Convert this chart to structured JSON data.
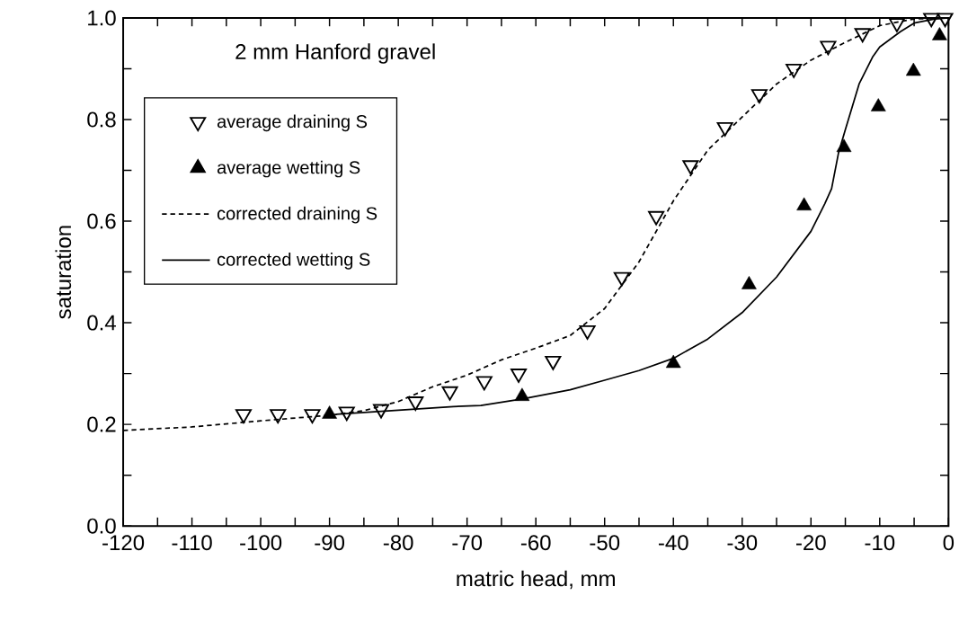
{
  "chart_data": {
    "type": "line",
    "xlabel": "matric head,  mm",
    "ylabel": "saturation",
    "annotations": [
      "2 mm Hanford gravel"
    ],
    "xlim": [
      -120,
      0
    ],
    "ylim": [
      0,
      1
    ],
    "xticks": [
      -120,
      {
        "value": -115,
        "label": null
      },
      -110,
      {
        "value": -105,
        "label": null
      },
      -100,
      {
        "value": -95,
        "label": null
      },
      -90,
      {
        "value": -85,
        "label": null
      },
      -80,
      {
        "value": -75,
        "label": null
      },
      -70,
      {
        "value": -65,
        "label": null
      },
      -60,
      {
        "value": -55,
        "label": null
      },
      -50,
      {
        "value": -45,
        "label": null
      },
      -40,
      {
        "value": -35,
        "label": null
      },
      -30,
      {
        "value": -25,
        "label": null
      },
      -20,
      {
        "value": -15,
        "label": null
      },
      -10,
      {
        "value": -5,
        "label": null
      },
      0
    ],
    "yticks": [
      {
        "value": 0,
        "label": "0.0"
      },
      {
        "value": 0.1,
        "label": null
      },
      0.2,
      {
        "value": 0.3,
        "label": null
      },
      0.4,
      {
        "value": 0.5,
        "label": null
      },
      0.6,
      {
        "value": 0.7,
        "label": null
      },
      0.8,
      {
        "value": 0.9,
        "label": null
      },
      {
        "value": 1,
        "label": "1.0"
      }
    ],
    "legend": "top left",
    "series": [
      {
        "name": "average draining S",
        "type": "scatter",
        "marker": "triangle",
        "color": "#000000",
        "x": [
          -102.5,
          -97.5,
          -92.5,
          -87.5,
          -82.5,
          -77.5,
          -72.5,
          -67.5,
          -62.5,
          -57.5,
          -52.5,
          -47.5,
          -42.5,
          -37.5,
          -32.5,
          -27.5,
          -22.5,
          -17.5,
          -12.5,
          -7.5,
          -2.5,
          -0.5
        ],
        "values": [
          0.22,
          0.22,
          0.22,
          0.225,
          0.23,
          0.245,
          0.265,
          0.285,
          0.3,
          0.325,
          0.385,
          0.49,
          0.61,
          0.71,
          0.785,
          0.85,
          0.9,
          0.945,
          0.97,
          0.99,
          1.0,
          1.0
        ]
      },
      {
        "name": "average wetting S",
        "type": "scatter",
        "marker": "triangle",
        "color": "#000000",
        "x": [
          -90,
          -62,
          -40,
          -29,
          -21,
          -15.2,
          -10.2,
          -5.1,
          -1.3
        ],
        "values": [
          0.22,
          0.255,
          0.32,
          0.475,
          0.63,
          0.745,
          0.825,
          0.895,
          0.965
        ]
      },
      {
        "name": "corrected draining S",
        "type": "line",
        "marker": "none",
        "line_style": "dashed",
        "color": "#000000",
        "x": [
          -120,
          -110,
          -100,
          -90,
          -85,
          -80,
          -75,
          -70,
          -65,
          -60,
          -55,
          -50,
          -45,
          -40,
          -35,
          -30,
          -25,
          -20,
          -15,
          -10,
          -5,
          0
        ],
        "values": [
          0.188,
          0.195,
          0.207,
          0.218,
          0.227,
          0.245,
          0.274,
          0.297,
          0.327,
          0.35,
          0.375,
          0.428,
          0.52,
          0.64,
          0.74,
          0.805,
          0.87,
          0.917,
          0.952,
          0.985,
          0.998,
          1.0
        ]
      },
      {
        "name": "corrected wetting S",
        "type": "line",
        "marker": "none",
        "line_style": "solid",
        "color": "#000000",
        "x": [
          -89,
          -80,
          -72,
          -68,
          -62,
          -55,
          -50,
          -45,
          -40,
          -35,
          -30,
          -25,
          -20,
          -18,
          -17,
          -16,
          -15,
          -13,
          -11,
          -10,
          -7,
          -5,
          -2,
          0
        ],
        "values": [
          0.22,
          0.228,
          0.235,
          0.237,
          0.25,
          0.268,
          0.287,
          0.306,
          0.33,
          0.368,
          0.42,
          0.49,
          0.58,
          0.634,
          0.664,
          0.734,
          0.78,
          0.87,
          0.924,
          0.943,
          0.973,
          0.99,
          0.998,
          1.0
        ]
      }
    ]
  }
}
